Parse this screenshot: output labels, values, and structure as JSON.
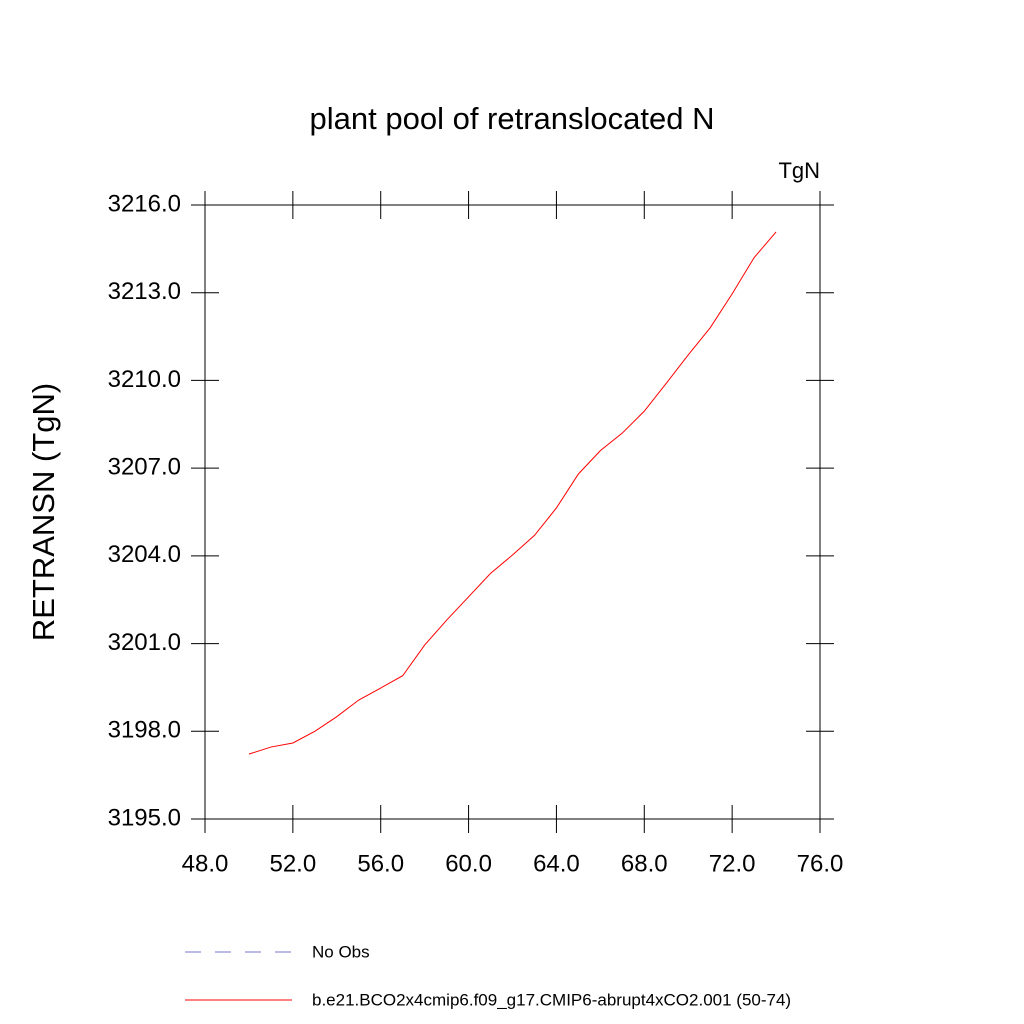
{
  "chart_data": {
    "type": "line",
    "title": "plant pool of retranslocated N",
    "units": "TgN",
    "ylabel": "RETRANSN  (TgN)",
    "x": [
      50,
      51,
      52,
      53,
      54,
      55,
      56,
      57,
      58,
      59,
      60,
      61,
      62,
      63,
      64,
      65,
      66,
      67,
      68,
      69,
      70,
      71,
      72,
      73,
      74
    ],
    "series": [
      {
        "name": "b.e21.BCO2x4cmip6.f09_g17.CMIP6-abrupt4xCO2.001 (50-74)",
        "color": "#ff0000",
        "values": [
          3197.22,
          3197.46,
          3197.6,
          3198.0,
          3198.5,
          3199.07,
          3199.48,
          3199.9,
          3200.95,
          3201.8,
          3202.6,
          3203.4,
          3204.03,
          3204.7,
          3205.64,
          3206.8,
          3207.6,
          3208.2,
          3208.95,
          3209.9,
          3210.87,
          3211.8,
          3212.96,
          3214.2,
          3215.08
        ]
      }
    ],
    "reference_legend": {
      "name": "No Obs",
      "color": "#7777cc",
      "style": "dashed"
    },
    "xlim": [
      48,
      76
    ],
    "xticks": [
      {
        "value": 48,
        "label": "48.0"
      },
      {
        "value": 52,
        "label": "52.0"
      },
      {
        "value": 56,
        "label": "56.0"
      },
      {
        "value": 60,
        "label": "60.0"
      },
      {
        "value": 64,
        "label": "64.0"
      },
      {
        "value": 68,
        "label": "68.0"
      },
      {
        "value": 72,
        "label": "72.0"
      },
      {
        "value": 76,
        "label": "76.0"
      }
    ],
    "ylim": [
      3195,
      3216
    ],
    "yticks": [
      {
        "value": 3195,
        "label": "3195.0"
      },
      {
        "value": 3198,
        "label": "3198.0"
      },
      {
        "value": 3201,
        "label": "3201.0"
      },
      {
        "value": 3204,
        "label": "3204.0"
      },
      {
        "value": 3207,
        "label": "3207.0"
      },
      {
        "value": 3210,
        "label": "3210.0"
      },
      {
        "value": 3213,
        "label": "3213.0"
      },
      {
        "value": 3216,
        "label": "3216.0"
      }
    ]
  }
}
